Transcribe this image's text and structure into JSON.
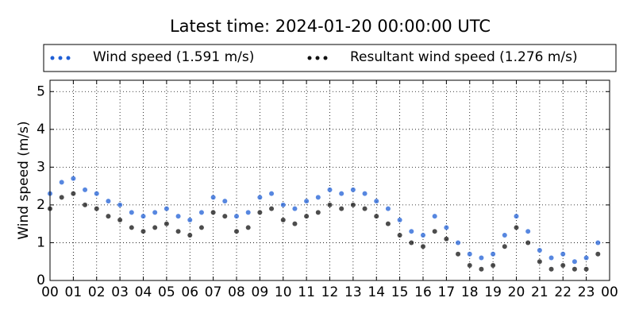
{
  "chart_data": {
    "type": "scatter",
    "title": "Latest time: 2024-01-20 00:00:00 UTC",
    "ylabel": "Wind speed (m/s)",
    "x": [
      0,
      0.5,
      1,
      1.5,
      2,
      2.5,
      3,
      3.5,
      4,
      4.5,
      5,
      5.5,
      6,
      6.5,
      7,
      7.5,
      8,
      8.5,
      9,
      9.5,
      10,
      10.5,
      11,
      11.5,
      12,
      12.5,
      13,
      13.5,
      14,
      14.5,
      15,
      15.5,
      16,
      16.5,
      17,
      17.5,
      18,
      18.5,
      19,
      19.5,
      20,
      20.5,
      21,
      21.5,
      22,
      22.5,
      23,
      23.5
    ],
    "series": [
      {
        "name": "Wind speed (1.591 m/s)",
        "color": "#1f5fd6",
        "values": [
          2.3,
          2.6,
          2.7,
          2.4,
          2.3,
          2.1,
          2.0,
          1.8,
          1.7,
          1.8,
          1.9,
          1.7,
          1.6,
          1.8,
          2.2,
          2.1,
          1.7,
          1.8,
          2.2,
          2.3,
          2.0,
          1.9,
          2.1,
          2.2,
          2.4,
          2.3,
          2.4,
          2.3,
          2.1,
          1.9,
          1.6,
          1.3,
          1.2,
          1.7,
          1.4,
          1.0,
          0.7,
          0.6,
          0.7,
          1.2,
          1.7,
          1.3,
          0.8,
          0.6,
          0.7,
          0.5,
          0.6,
          1.0
        ]
      },
      {
        "name": "Resultant wind speed (1.276 m/s)",
        "color": "#111111",
        "values": [
          1.9,
          2.2,
          2.3,
          2.0,
          1.9,
          1.7,
          1.6,
          1.4,
          1.3,
          1.4,
          1.5,
          1.3,
          1.2,
          1.4,
          1.8,
          1.7,
          1.3,
          1.4,
          1.8,
          1.9,
          1.6,
          1.5,
          1.7,
          1.8,
          2.0,
          1.9,
          2.0,
          1.9,
          1.7,
          1.5,
          1.2,
          1.0,
          0.9,
          1.3,
          1.1,
          0.7,
          0.4,
          0.3,
          0.4,
          0.9,
          1.4,
          1.0,
          0.5,
          0.3,
          0.4,
          0.3,
          0.3,
          0.7
        ]
      }
    ],
    "xlim": [
      0,
      24
    ],
    "xticks": [
      {
        "value": 0,
        "label": "00"
      },
      {
        "value": 1,
        "label": "01"
      },
      {
        "value": 2,
        "label": "02"
      },
      {
        "value": 3,
        "label": "03"
      },
      {
        "value": 4,
        "label": "04"
      },
      {
        "value": 5,
        "label": "05"
      },
      {
        "value": 6,
        "label": "06"
      },
      {
        "value": 7,
        "label": "07"
      },
      {
        "value": 8,
        "label": "08"
      },
      {
        "value": 9,
        "label": "09"
      },
      {
        "value": 10,
        "label": "10"
      },
      {
        "value": 11,
        "label": "11"
      },
      {
        "value": 12,
        "label": "12"
      },
      {
        "value": 13,
        "label": "13"
      },
      {
        "value": 14,
        "label": "14"
      },
      {
        "value": 15,
        "label": "15"
      },
      {
        "value": 16,
        "label": "16"
      },
      {
        "value": 17,
        "label": "17"
      },
      {
        "value": 18,
        "label": "18"
      },
      {
        "value": 19,
        "label": "19"
      },
      {
        "value": 20,
        "label": "20"
      },
      {
        "value": 21,
        "label": "21"
      },
      {
        "value": 22,
        "label": "22"
      },
      {
        "value": 23,
        "label": "23"
      },
      {
        "value": 24,
        "label": "00"
      }
    ],
    "ylim": [
      0,
      5.3
    ],
    "yticks": [
      0,
      1,
      2,
      3,
      4,
      5
    ],
    "grid": true
  }
}
